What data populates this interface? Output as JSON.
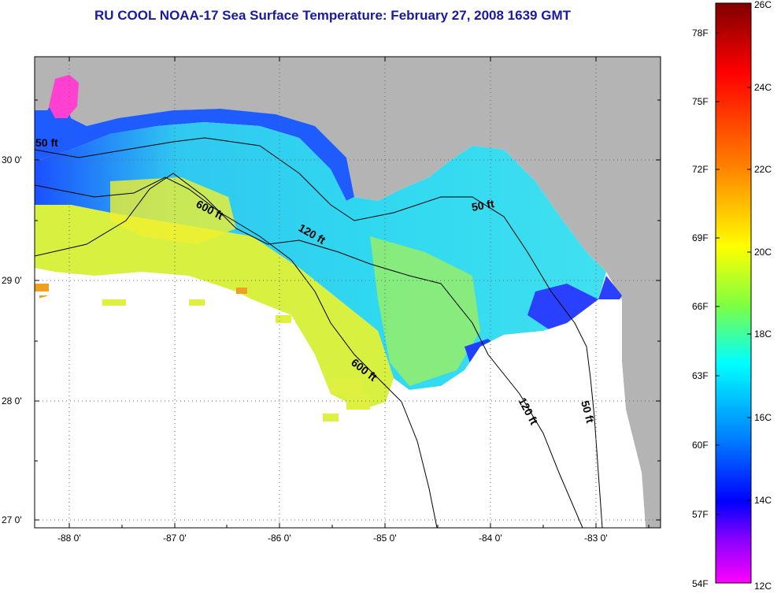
{
  "title": "RU COOL  NOAA-17  Sea Surface Temperature:  February 27, 2008 1639 GMT",
  "colors": {
    "land": "#b4b4b4",
    "title": "#1a1aa0",
    "grid": "#666666"
  },
  "map": {
    "lon_ticks": [
      "-88 0'",
      "-87 0'",
      "-86 0'",
      "-85 0'",
      "-84 0'",
      "-83 0'"
    ],
    "lat_ticks": [
      "30 0'",
      "29 0'",
      "28 0'",
      "27 0'"
    ],
    "contour_labels": [
      "50 ft",
      "600 ft",
      "120 ft",
      "50 ft",
      "600 ft",
      "120 ft",
      "50 ft"
    ]
  },
  "colorbar": {
    "fahrenheit": [
      "78F",
      "75F",
      "72F",
      "69F",
      "66F",
      "63F",
      "60F",
      "57F",
      "54F"
    ],
    "celsius": [
      "26C",
      "24C",
      "22C",
      "20C",
      "18C",
      "16C",
      "14C",
      "12C"
    ],
    "gradient": [
      "#800000",
      "#ff0000",
      "#ff8000",
      "#ffff00",
      "#80ff00",
      "#00ffff",
      "#0080ff",
      "#0000ff",
      "#8000ff",
      "#ff00ff"
    ]
  }
}
